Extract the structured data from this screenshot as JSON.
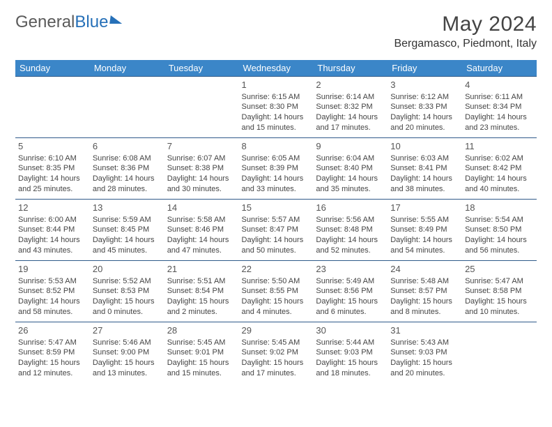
{
  "logo": {
    "text1": "General",
    "text2": "Blue"
  },
  "title": "May 2024",
  "subtitle": "Bergamasco, Piedmont, Italy",
  "colors": {
    "header_bg": "#3b86c8",
    "header_text": "#ffffff",
    "row_border": "#2f5a8a",
    "logo_gray": "#5a5a5a",
    "logo_blue": "#2670b8",
    "body_text": "#444444"
  },
  "day_headers": [
    "Sunday",
    "Monday",
    "Tuesday",
    "Wednesday",
    "Thursday",
    "Friday",
    "Saturday"
  ],
  "weeks": [
    [
      null,
      null,
      null,
      {
        "n": "1",
        "sr": "Sunrise: 6:15 AM",
        "ss": "Sunset: 8:30 PM",
        "d1": "Daylight: 14 hours",
        "d2": "and 15 minutes."
      },
      {
        "n": "2",
        "sr": "Sunrise: 6:14 AM",
        "ss": "Sunset: 8:32 PM",
        "d1": "Daylight: 14 hours",
        "d2": "and 17 minutes."
      },
      {
        "n": "3",
        "sr": "Sunrise: 6:12 AM",
        "ss": "Sunset: 8:33 PM",
        "d1": "Daylight: 14 hours",
        "d2": "and 20 minutes."
      },
      {
        "n": "4",
        "sr": "Sunrise: 6:11 AM",
        "ss": "Sunset: 8:34 PM",
        "d1": "Daylight: 14 hours",
        "d2": "and 23 minutes."
      }
    ],
    [
      {
        "n": "5",
        "sr": "Sunrise: 6:10 AM",
        "ss": "Sunset: 8:35 PM",
        "d1": "Daylight: 14 hours",
        "d2": "and 25 minutes."
      },
      {
        "n": "6",
        "sr": "Sunrise: 6:08 AM",
        "ss": "Sunset: 8:36 PM",
        "d1": "Daylight: 14 hours",
        "d2": "and 28 minutes."
      },
      {
        "n": "7",
        "sr": "Sunrise: 6:07 AM",
        "ss": "Sunset: 8:38 PM",
        "d1": "Daylight: 14 hours",
        "d2": "and 30 minutes."
      },
      {
        "n": "8",
        "sr": "Sunrise: 6:05 AM",
        "ss": "Sunset: 8:39 PM",
        "d1": "Daylight: 14 hours",
        "d2": "and 33 minutes."
      },
      {
        "n": "9",
        "sr": "Sunrise: 6:04 AM",
        "ss": "Sunset: 8:40 PM",
        "d1": "Daylight: 14 hours",
        "d2": "and 35 minutes."
      },
      {
        "n": "10",
        "sr": "Sunrise: 6:03 AM",
        "ss": "Sunset: 8:41 PM",
        "d1": "Daylight: 14 hours",
        "d2": "and 38 minutes."
      },
      {
        "n": "11",
        "sr": "Sunrise: 6:02 AM",
        "ss": "Sunset: 8:42 PM",
        "d1": "Daylight: 14 hours",
        "d2": "and 40 minutes."
      }
    ],
    [
      {
        "n": "12",
        "sr": "Sunrise: 6:00 AM",
        "ss": "Sunset: 8:44 PM",
        "d1": "Daylight: 14 hours",
        "d2": "and 43 minutes."
      },
      {
        "n": "13",
        "sr": "Sunrise: 5:59 AM",
        "ss": "Sunset: 8:45 PM",
        "d1": "Daylight: 14 hours",
        "d2": "and 45 minutes."
      },
      {
        "n": "14",
        "sr": "Sunrise: 5:58 AM",
        "ss": "Sunset: 8:46 PM",
        "d1": "Daylight: 14 hours",
        "d2": "and 47 minutes."
      },
      {
        "n": "15",
        "sr": "Sunrise: 5:57 AM",
        "ss": "Sunset: 8:47 PM",
        "d1": "Daylight: 14 hours",
        "d2": "and 50 minutes."
      },
      {
        "n": "16",
        "sr": "Sunrise: 5:56 AM",
        "ss": "Sunset: 8:48 PM",
        "d1": "Daylight: 14 hours",
        "d2": "and 52 minutes."
      },
      {
        "n": "17",
        "sr": "Sunrise: 5:55 AM",
        "ss": "Sunset: 8:49 PM",
        "d1": "Daylight: 14 hours",
        "d2": "and 54 minutes."
      },
      {
        "n": "18",
        "sr": "Sunrise: 5:54 AM",
        "ss": "Sunset: 8:50 PM",
        "d1": "Daylight: 14 hours",
        "d2": "and 56 minutes."
      }
    ],
    [
      {
        "n": "19",
        "sr": "Sunrise: 5:53 AM",
        "ss": "Sunset: 8:52 PM",
        "d1": "Daylight: 14 hours",
        "d2": "and 58 minutes."
      },
      {
        "n": "20",
        "sr": "Sunrise: 5:52 AM",
        "ss": "Sunset: 8:53 PM",
        "d1": "Daylight: 15 hours",
        "d2": "and 0 minutes."
      },
      {
        "n": "21",
        "sr": "Sunrise: 5:51 AM",
        "ss": "Sunset: 8:54 PM",
        "d1": "Daylight: 15 hours",
        "d2": "and 2 minutes."
      },
      {
        "n": "22",
        "sr": "Sunrise: 5:50 AM",
        "ss": "Sunset: 8:55 PM",
        "d1": "Daylight: 15 hours",
        "d2": "and 4 minutes."
      },
      {
        "n": "23",
        "sr": "Sunrise: 5:49 AM",
        "ss": "Sunset: 8:56 PM",
        "d1": "Daylight: 15 hours",
        "d2": "and 6 minutes."
      },
      {
        "n": "24",
        "sr": "Sunrise: 5:48 AM",
        "ss": "Sunset: 8:57 PM",
        "d1": "Daylight: 15 hours",
        "d2": "and 8 minutes."
      },
      {
        "n": "25",
        "sr": "Sunrise: 5:47 AM",
        "ss": "Sunset: 8:58 PM",
        "d1": "Daylight: 15 hours",
        "d2": "and 10 minutes."
      }
    ],
    [
      {
        "n": "26",
        "sr": "Sunrise: 5:47 AM",
        "ss": "Sunset: 8:59 PM",
        "d1": "Daylight: 15 hours",
        "d2": "and 12 minutes."
      },
      {
        "n": "27",
        "sr": "Sunrise: 5:46 AM",
        "ss": "Sunset: 9:00 PM",
        "d1": "Daylight: 15 hours",
        "d2": "and 13 minutes."
      },
      {
        "n": "28",
        "sr": "Sunrise: 5:45 AM",
        "ss": "Sunset: 9:01 PM",
        "d1": "Daylight: 15 hours",
        "d2": "and 15 minutes."
      },
      {
        "n": "29",
        "sr": "Sunrise: 5:45 AM",
        "ss": "Sunset: 9:02 PM",
        "d1": "Daylight: 15 hours",
        "d2": "and 17 minutes."
      },
      {
        "n": "30",
        "sr": "Sunrise: 5:44 AM",
        "ss": "Sunset: 9:03 PM",
        "d1": "Daylight: 15 hours",
        "d2": "and 18 minutes."
      },
      {
        "n": "31",
        "sr": "Sunrise: 5:43 AM",
        "ss": "Sunset: 9:03 PM",
        "d1": "Daylight: 15 hours",
        "d2": "and 20 minutes."
      },
      null
    ]
  ]
}
